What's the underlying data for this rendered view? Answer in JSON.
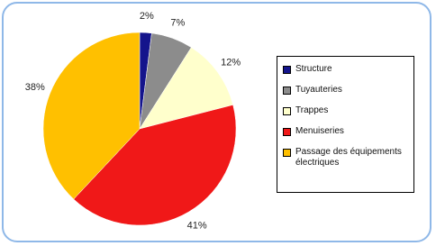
{
  "chart_data": {
    "type": "pie",
    "categories": [
      "Structure",
      "Tuyauteries",
      "Trappes",
      "Menuiseries",
      "Passage des équipements électriques"
    ],
    "values": [
      2,
      7,
      12,
      41,
      38
    ],
    "value_labels": [
      "2%",
      "7%",
      "12%",
      "41%",
      "38%"
    ],
    "colors": [
      "#14148c",
      "#8c8c8c",
      "#ffffcc",
      "#f01818",
      "#ffc000"
    ],
    "legend": "right"
  }
}
